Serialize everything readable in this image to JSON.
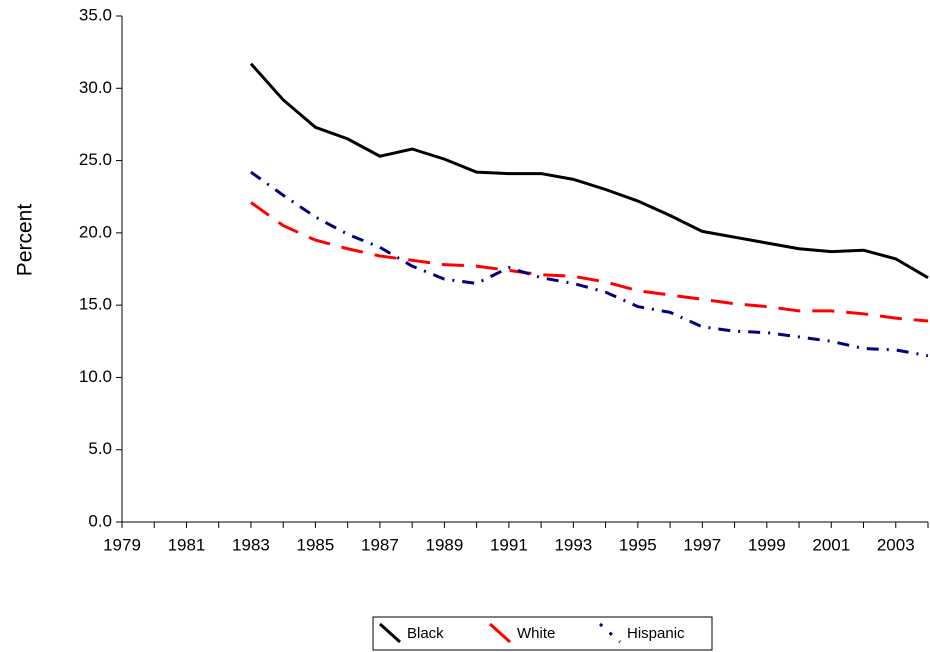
{
  "chart_data": {
    "type": "line",
    "y_label": "Percent",
    "x": [
      1983,
      1984,
      1985,
      1986,
      1987,
      1988,
      1989,
      1990,
      1991,
      1992,
      1993,
      1994,
      1995,
      1996,
      1997,
      1998,
      1999,
      2000,
      2001,
      2002,
      2003,
      2004
    ],
    "series": [
      {
        "name": "Black",
        "color": "#000000",
        "dash": "solid",
        "values": [
          31.7,
          29.2,
          27.3,
          26.5,
          25.3,
          25.8,
          25.1,
          24.2,
          24.1,
          24.1,
          23.7,
          23.0,
          22.2,
          21.2,
          20.1,
          19.7,
          19.3,
          18.9,
          18.7,
          18.8,
          18.2,
          16.9
        ]
      },
      {
        "name": "White",
        "color": "#ff0000",
        "dash": "long-dash",
        "values": [
          22.1,
          20.5,
          19.5,
          18.9,
          18.4,
          18.1,
          17.8,
          17.7,
          17.4,
          17.1,
          17.0,
          16.6,
          16.0,
          15.7,
          15.4,
          15.1,
          14.9,
          14.6,
          14.6,
          14.4,
          14.1,
          13.9
        ]
      },
      {
        "name": "Hispanic",
        "color": "#000080",
        "dash": "dash-dot",
        "values": [
          24.2,
          22.6,
          21.1,
          19.9,
          19.0,
          17.7,
          16.8,
          16.5,
          17.6,
          16.9,
          16.5,
          15.9,
          14.9,
          14.5,
          13.5,
          13.2,
          13.1,
          12.8,
          12.5,
          12.0,
          11.9,
          11.5
        ]
      }
    ],
    "xlim": [
      1979,
      2004
    ],
    "xticks": [
      1979,
      1981,
      1983,
      1985,
      1987,
      1989,
      1991,
      1993,
      1995,
      1997,
      1999,
      2001,
      2003
    ],
    "ylim": [
      0,
      35
    ],
    "yticks": [
      {
        "value": 0,
        "label": "0.0"
      },
      {
        "value": 5,
        "label": "5.0"
      },
      {
        "value": 10,
        "label": "10.0"
      },
      {
        "value": 15,
        "label": "15.0"
      },
      {
        "value": 20,
        "label": "20.0"
      },
      {
        "value": 25,
        "label": "25.0"
      },
      {
        "value": 30,
        "label": "30.0"
      },
      {
        "value": 35,
        "label": "35.0"
      }
    ],
    "grid": false,
    "legend": "bottom"
  }
}
